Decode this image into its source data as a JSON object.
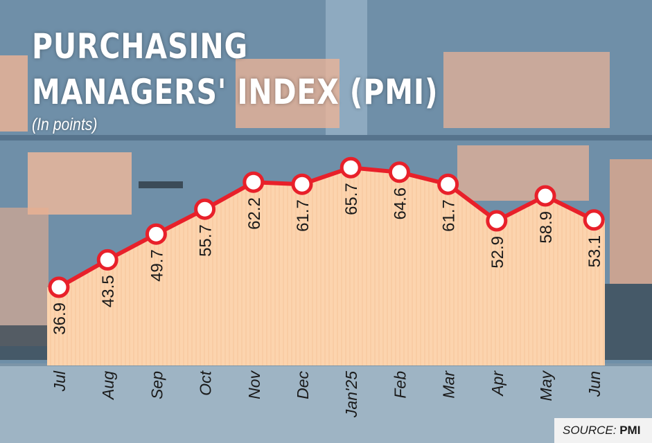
{
  "chart_data": {
    "type": "area",
    "title_lines": [
      "PURCHASING",
      "MANAGERS' INDEX (PMI)"
    ],
    "subtitle": "(In points)",
    "categories": [
      "Jul",
      "Aug",
      "Sep",
      "Oct",
      "Nov",
      "Dec",
      "Jan'25",
      "Feb",
      "Mar",
      "Apr",
      "May",
      "Jun"
    ],
    "values": [
      36.9,
      43.5,
      49.7,
      55.7,
      62.2,
      61.7,
      65.7,
      64.6,
      61.7,
      52.9,
      58.9,
      53.1
    ],
    "value_labels": [
      "36.9",
      "43.5",
      "49.7",
      "55.7",
      "62.2",
      "61.7",
      "65.7",
      "64.6",
      "61.7",
      "52.9",
      "58.9",
      "53.1"
    ],
    "ylim": [
      0,
      70
    ],
    "grid": false,
    "legend": "none",
    "colors": {
      "line": "#e8202a",
      "area": "#fcd7b3",
      "marker_fill": "#ffffff",
      "text": "#1a1a1a"
    }
  },
  "source": {
    "prefix": "SOURCE: ",
    "name": "PMI"
  }
}
